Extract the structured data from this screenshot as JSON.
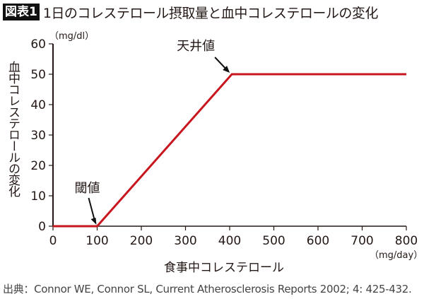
{
  "header": {
    "badge": "図表1",
    "title": "1日のコレステロール摂取量と血中コレステロールの変化"
  },
  "axes": {
    "y_unit": "（mg/dl）",
    "y_label": "血中コレステロールの変化",
    "x_unit": "（mg/day）",
    "x_label": "食事中コレステロール"
  },
  "annotations": {
    "threshold": "閾値",
    "ceiling": "天井値"
  },
  "source": "出典：Connor WE, Connor SL, Current Atherosclerosis Reports 2002; 4: 425-432.",
  "colors": {
    "line": "#c8161e",
    "axis": "#231815"
  },
  "chart_data": {
    "type": "line",
    "title": "1日のコレステロール摂取量と血中コレステロールの変化",
    "xlabel": "食事中コレステロール (mg/day)",
    "ylabel": "血中コレステロールの変化 (mg/dl)",
    "xlim": [
      0,
      800
    ],
    "ylim": [
      0,
      60
    ],
    "x_ticks": [
      0,
      100,
      200,
      300,
      400,
      500,
      600,
      700,
      800
    ],
    "y_ticks": [
      0,
      10,
      20,
      30,
      40,
      50,
      60
    ],
    "grid": false,
    "series": [
      {
        "name": "血中コレステロールの変化",
        "x": [
          0,
          100,
          405,
          800
        ],
        "y": [
          0,
          0,
          50,
          50
        ]
      }
    ],
    "annotations": [
      {
        "text": "閾値",
        "x": 100,
        "y": 0
      },
      {
        "text": "天井値",
        "x": 405,
        "y": 50
      }
    ],
    "source": "Connor WE, Connor SL, Current Atherosclerosis Reports 2002; 4: 425-432."
  }
}
